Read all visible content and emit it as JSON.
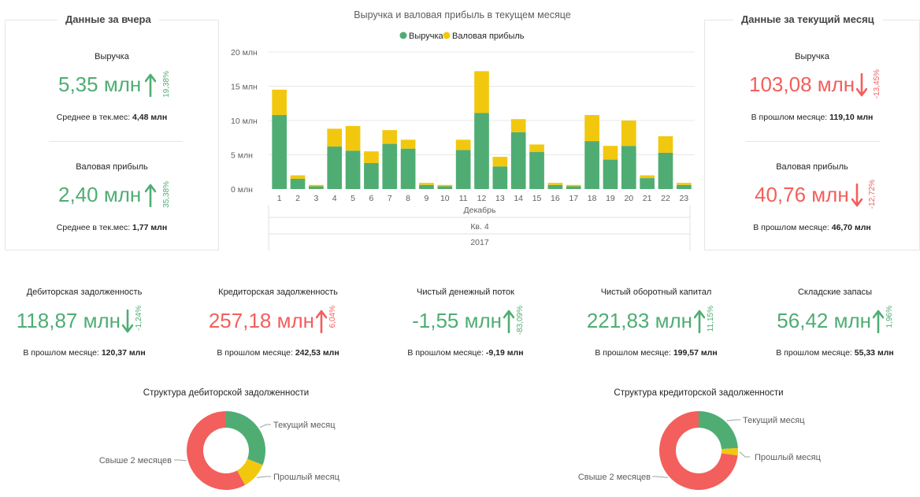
{
  "colors": {
    "green": "#4fad73",
    "red": "#f25f5c",
    "yellow": "#f2c80f"
  },
  "yesterday": {
    "title": "Данные за вчера",
    "revenue": {
      "label": "Выручка",
      "value": "5,35 млн",
      "pct": "19,38%",
      "trend": "up",
      "sub_label": "Среднее в тек.мес:",
      "sub_value": "4,48 млн"
    },
    "profit": {
      "label": "Валовая прибыль",
      "value": "2,40 млн",
      "pct": "35,38%",
      "trend": "up",
      "sub_label": "Среднее в тек.мес:",
      "sub_value": "1,77 млн"
    }
  },
  "current": {
    "title": "Данные за текущий месяц",
    "revenue": {
      "label": "Выручка",
      "value": "103,08 млн",
      "pct": "-13,45%",
      "trend": "down",
      "sub_label": "В прошлом месяце:",
      "sub_value": "119,10 млн"
    },
    "profit": {
      "label": "Валовая прибыль",
      "value": "40,76 млн",
      "pct": "-12,72%",
      "trend": "down",
      "sub_label": "В прошлом месяце:",
      "sub_value": "46,70 млн"
    }
  },
  "kpis": [
    {
      "label": "Дебиторская задолженность",
      "value": "118,87 млн",
      "pct": "-1,24%",
      "color": "green",
      "arrow": "down",
      "sub_label": "В прошлом месяце:",
      "sub_value": "120,37 млн"
    },
    {
      "label": "Кредиторская задолженность",
      "value": "257,18 млн",
      "pct": "6,04%",
      "color": "red",
      "arrow": "up",
      "sub_label": "В прошлом месяце:",
      "sub_value": "242,53 млн"
    },
    {
      "label": "Чистый денежный поток",
      "value": "-1,55 млн",
      "pct": "-83,09%",
      "color": "green",
      "arrow": "up",
      "sub_label": "В прошлом месяце:",
      "sub_value": "-9,19 млн"
    },
    {
      "label": "Чистый оборотный капитал",
      "value": "221,83 млн",
      "pct": "11,15%",
      "color": "green",
      "arrow": "up",
      "sub_label": "В прошлом месяце:",
      "sub_value": "199,57 млн"
    },
    {
      "label": "Складские запасы",
      "value": "56,42 млн",
      "pct": "1,96%",
      "color": "green",
      "arrow": "up",
      "sub_label": "В прошлом месяце:",
      "sub_value": "55,33 млн"
    }
  ],
  "chart_data": [
    {
      "type": "bar",
      "stacked": true,
      "title": "Выручка и валовая прибыль в текущем месяце",
      "legend_position": "top-center",
      "categories": [
        "1",
        "2",
        "3",
        "4",
        "5",
        "6",
        "7",
        "8",
        "9",
        "10",
        "11",
        "12",
        "13",
        "14",
        "15",
        "16",
        "17",
        "18",
        "19",
        "20",
        "21",
        "22",
        "23"
      ],
      "x_hierarchy": [
        "Декабрь",
        "Кв. 4",
        "2017"
      ],
      "y_ticks": [
        "0 млн",
        "5 млн",
        "10 млн",
        "15 млн",
        "20 млн"
      ],
      "ylim": [
        0,
        20
      ],
      "grid": true,
      "series": [
        {
          "name": "Выручка",
          "color": "#4fad73",
          "values": [
            10.8,
            1.5,
            0.4,
            6.2,
            5.6,
            3.8,
            6.6,
            5.9,
            0.6,
            0.4,
            5.7,
            11.1,
            3.3,
            8.3,
            5.4,
            0.6,
            0.4,
            7.0,
            4.3,
            6.3,
            1.6,
            5.3,
            0.6
          ]
        },
        {
          "name": "Валовая прибыль",
          "color": "#f2c80f",
          "values": [
            3.7,
            0.5,
            0.2,
            2.6,
            3.6,
            1.7,
            2.0,
            1.3,
            0.3,
            0.2,
            1.5,
            6.1,
            1.4,
            1.9,
            1.1,
            0.3,
            0.2,
            3.8,
            2.0,
            3.7,
            0.4,
            2.4,
            0.3
          ]
        }
      ]
    },
    {
      "type": "pie",
      "donut": true,
      "title": "Структура дебиторской задолженности",
      "labels": [
        "Текущий месяц",
        "Прошлый месяц",
        "Свыше 2 месяцев"
      ],
      "values": [
        31,
        11,
        58
      ],
      "colors": [
        "#4fad73",
        "#f2c80f",
        "#f25f5c"
      ]
    },
    {
      "type": "pie",
      "donut": true,
      "title": "Структура кредиторской задолженности",
      "labels": [
        "Текущий месяц",
        "Прошлый месяц",
        "Свыше 2 месяцев"
      ],
      "values": [
        24,
        3,
        73
      ],
      "colors": [
        "#4fad73",
        "#f2c80f",
        "#f25f5c"
      ]
    }
  ]
}
